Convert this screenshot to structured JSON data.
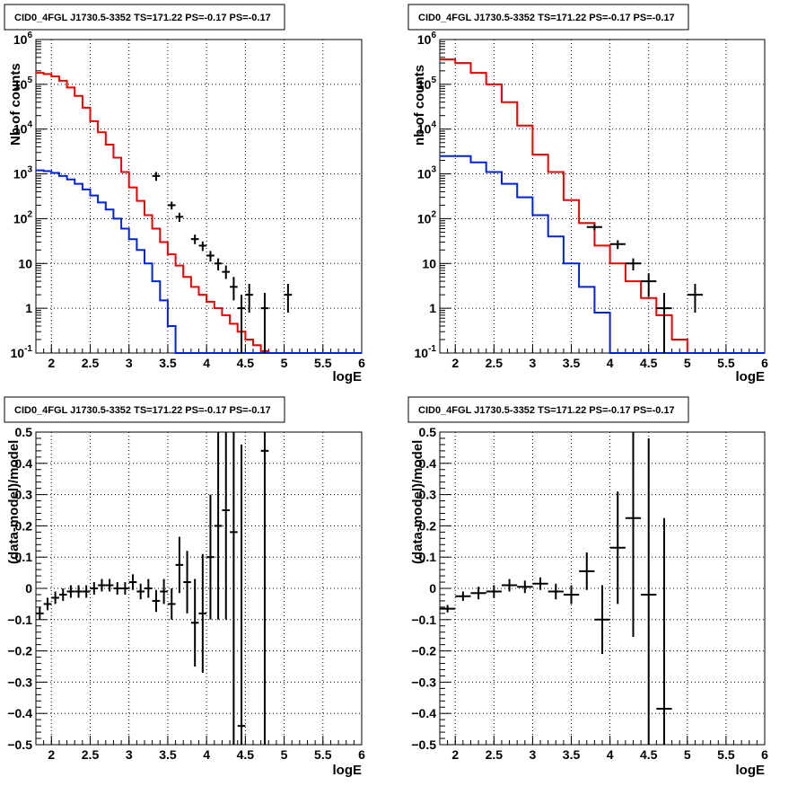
{
  "charts": [
    {
      "title": "CID0_4FGL J1730.5-3352 TS=171.22 PS=-0.17 PS=-0.17",
      "xlabel": "logE",
      "ylabel": "Nb of counts"
    },
    {
      "title": "CID0_4FGL J1730.5-3352 TS=171.22 PS=-0.17 PS=-0.17",
      "xlabel": "logE",
      "ylabel": "nb of counts"
    },
    {
      "title": "CID0_4FGL J1730.5-3352 TS=171.22 PS=-0.17 PS=-0.17",
      "xlabel": "logE",
      "ylabel": "(data-model)/model"
    },
    {
      "title": "CID0_4FGL J1730.5-3352 TS=171.22 PS=-0.17 PS=-0.17",
      "xlabel": "logE",
      "ylabel": "(data-model)/model"
    }
  ],
  "x_ticks": [
    "2",
    "2.5",
    "3",
    "3.5",
    "4",
    "4.5",
    "5",
    "5.5",
    "6"
  ],
  "log_y_ticks": [
    "10",
    "1",
    "10",
    "10",
    "10",
    "10",
    "10",
    "10"
  ],
  "resid_y_ticks": [
    "0.5",
    "0.4",
    "0.3",
    "0.2",
    "0.1",
    "0",
    "−0.1",
    "−0.2",
    "−0.3",
    "−0.4",
    "−0.5"
  ],
  "colors": {
    "total_model": "#ee0000",
    "source_model": "#0022dd",
    "data": "#000000",
    "grid": "#000000"
  },
  "chart_data": [
    {
      "type": "line",
      "title": "CID0_4FGL J1730.5-3352 TS=171.22 PS=-0.17 PS=-0.17",
      "xlabel": "logE",
      "ylabel": "Nb of counts",
      "xlim": [
        1.8,
        6.0
      ],
      "ylim": [
        0.1,
        1000000
      ],
      "yscale": "log",
      "grid": true,
      "step": 0.1,
      "series": [
        {
          "x_start": 1.8,
          "values": [
            180000,
            170000,
            150000,
            120000,
            85000,
            55000,
            30000,
            15000,
            8500,
            4500,
            2300,
            1100,
            500,
            250,
            120,
            60,
            30,
            16,
            9,
            5,
            3,
            2,
            1.4,
            1.0,
            0.7,
            0.45,
            0.3,
            0.2,
            0.15,
            0.11,
            0.1,
            0.1,
            0.1,
            0.1,
            0.1,
            0.1,
            0.1,
            0.1,
            0.1,
            0.1,
            0.1,
            0.1
          ]
        },
        {
          "x_start": 1.8,
          "values": [
            1200,
            1150,
            1050,
            900,
            750,
            600,
            450,
            330,
            230,
            160,
            100,
            60,
            35,
            20,
            10,
            4,
            1.5,
            0.4,
            0.1,
            0.1,
            0.1,
            0.1,
            0.1,
            0.1,
            0.1,
            0.1,
            0.1,
            0.1,
            0.1,
            0.1,
            0.1,
            0.1,
            0.1,
            0.1,
            0.1,
            0.1,
            0.1,
            0.1,
            0.1,
            0.1,
            0.1,
            0.1
          ]
        }
      ],
      "points": [
        {
          "x": 3.35,
          "y": 900,
          "err": [
            700,
            1100
          ]
        },
        {
          "x": 3.55,
          "y": 200,
          "err": [
            160,
            240
          ]
        },
        {
          "x": 3.65,
          "y": 110,
          "err": [
            85,
            135
          ]
        },
        {
          "x": 3.85,
          "y": 35,
          "err": [
            27,
            44
          ]
        },
        {
          "x": 3.95,
          "y": 25,
          "err": [
            19,
            31
          ]
        },
        {
          "x": 4.05,
          "y": 15,
          "err": [
            11,
            19
          ]
        },
        {
          "x": 4.15,
          "y": 10,
          "err": [
            7,
            13
          ]
        },
        {
          "x": 4.25,
          "y": 6.5,
          "err": [
            4.5,
            9
          ]
        },
        {
          "x": 4.35,
          "y": 3,
          "err": [
            1.5,
            5
          ]
        },
        {
          "x": 4.45,
          "y": 1,
          "err": [
            0.1,
            2
          ]
        },
        {
          "x": 4.55,
          "y": 2,
          "err": [
            0.8,
            3.5
          ]
        },
        {
          "x": 4.75,
          "y": 1,
          "err": [
            0.1,
            2.2
          ]
        },
        {
          "x": 5.05,
          "y": 2,
          "err": [
            0.8,
            3.5
          ]
        }
      ]
    },
    {
      "type": "line",
      "title": "CID0_4FGL J1730.5-3352 TS=171.22 PS=-0.17 PS=-0.17",
      "xlabel": "logE",
      "ylabel": "nb of counts",
      "xlim": [
        1.8,
        6.0
      ],
      "ylim": [
        0.1,
        1000000
      ],
      "yscale": "log",
      "grid": true,
      "step": 0.2,
      "series": [
        {
          "x_start": 1.8,
          "values": [
            360000,
            300000,
            180000,
            100000,
            40000,
            12000,
            2700,
            1100,
            260,
            80,
            25,
            10,
            4,
            1.7,
            0.7,
            0.2,
            0.1,
            0.1,
            0.1,
            0.1,
            0.1
          ]
        },
        {
          "x_start": 1.8,
          "values": [
            2500,
            2500,
            1800,
            1100,
            600,
            300,
            120,
            40,
            10,
            3,
            0.8,
            0.1,
            0.1,
            0.1,
            0.1,
            0.1,
            0.1,
            0.1,
            0.1,
            0.1,
            0.1
          ]
        }
      ],
      "points": [
        {
          "x": 3.8,
          "y": 65,
          "err": [
            55,
            75
          ]
        },
        {
          "x": 4.1,
          "y": 27,
          "err": [
            21,
            33
          ]
        },
        {
          "x": 4.3,
          "y": 10,
          "err": [
            7,
            13
          ]
        },
        {
          "x": 4.5,
          "y": 4,
          "err": [
            1.8,
            6
          ]
        },
        {
          "x": 4.7,
          "y": 1,
          "err": [
            0.1,
            2.2
          ]
        },
        {
          "x": 5.1,
          "y": 2,
          "err": [
            0.8,
            3.5
          ]
        }
      ]
    },
    {
      "type": "scatter",
      "title": "CID0_4FGL J1730.5-3352 TS=171.22 PS=-0.17 PS=-0.17",
      "xlabel": "logE",
      "ylabel": "(data-model)/model",
      "xlim": [
        1.8,
        6.0
      ],
      "ylim": [
        -0.5,
        0.5
      ],
      "grid": true,
      "half_width": 0.05,
      "points": [
        {
          "x": 1.85,
          "y": -0.08,
          "err": 0.02
        },
        {
          "x": 1.95,
          "y": -0.05,
          "err": 0.02
        },
        {
          "x": 2.05,
          "y": -0.03,
          "err": 0.02
        },
        {
          "x": 2.15,
          "y": -0.02,
          "err": 0.02
        },
        {
          "x": 2.25,
          "y": -0.01,
          "err": 0.02
        },
        {
          "x": 2.35,
          "y": -0.01,
          "err": 0.02
        },
        {
          "x": 2.45,
          "y": -0.01,
          "err": 0.02
        },
        {
          "x": 2.55,
          "y": 0.0,
          "err": 0.02
        },
        {
          "x": 2.65,
          "y": 0.01,
          "err": 0.02
        },
        {
          "x": 2.75,
          "y": 0.01,
          "err": 0.02
        },
        {
          "x": 2.85,
          "y": 0.0,
          "err": 0.02
        },
        {
          "x": 2.95,
          "y": 0.0,
          "err": 0.02
        },
        {
          "x": 3.05,
          "y": 0.02,
          "err": 0.025
        },
        {
          "x": 3.15,
          "y": -0.01,
          "err": 0.025
        },
        {
          "x": 3.25,
          "y": 0.0,
          "err": 0.03
        },
        {
          "x": 3.35,
          "y": -0.04,
          "err": 0.035
        },
        {
          "x": 3.45,
          "y": -0.01,
          "err": 0.04
        },
        {
          "x": 3.55,
          "y": -0.05,
          "err": 0.05
        },
        {
          "x": 3.65,
          "y": 0.075,
          "err": 0.09
        },
        {
          "x": 3.75,
          "y": 0.02,
          "err": 0.1
        },
        {
          "x": 3.85,
          "y": -0.11,
          "err": 0.14
        },
        {
          "x": 3.95,
          "y": -0.08,
          "err": 0.19
        },
        {
          "x": 4.05,
          "y": 0.1,
          "err": 0.2
        },
        {
          "x": 4.15,
          "y": 0.2,
          "err": 0.3
        },
        {
          "x": 4.25,
          "y": 0.25,
          "err": 0.35
        },
        {
          "x": 4.35,
          "y": 0.18,
          "err": 0.7
        },
        {
          "x": 4.45,
          "y": -0.44,
          "err": 0.9
        },
        {
          "x": 4.75,
          "y": 0.44,
          "err": 1.0
        }
      ]
    },
    {
      "type": "scatter",
      "title": "CID0_4FGL J1730.5-3352 TS=171.22 PS=-0.17 PS=-0.17",
      "xlabel": "logE",
      "ylabel": "(data-model)/model",
      "xlim": [
        1.8,
        6.0
      ],
      "ylim": [
        -0.5,
        0.5
      ],
      "grid": true,
      "half_width": 0.1,
      "points": [
        {
          "x": 1.9,
          "y": -0.065,
          "err": 0.012
        },
        {
          "x": 2.1,
          "y": -0.025,
          "err": 0.015
        },
        {
          "x": 2.3,
          "y": -0.015,
          "err": 0.02
        },
        {
          "x": 2.5,
          "y": -0.01,
          "err": 0.02
        },
        {
          "x": 2.7,
          "y": 0.01,
          "err": 0.02
        },
        {
          "x": 2.9,
          "y": 0.005,
          "err": 0.02
        },
        {
          "x": 3.1,
          "y": 0.015,
          "err": 0.02
        },
        {
          "x": 3.3,
          "y": -0.01,
          "err": 0.025
        },
        {
          "x": 3.5,
          "y": -0.02,
          "err": 0.03
        },
        {
          "x": 3.7,
          "y": 0.055,
          "err": 0.06
        },
        {
          "x": 3.9,
          "y": -0.1,
          "err": 0.11
        },
        {
          "x": 4.1,
          "y": 0.13,
          "err": 0.18
        },
        {
          "x": 4.3,
          "y": 0.225,
          "err": 0.38
        },
        {
          "x": 4.5,
          "y": -0.02,
          "err": 0.5
        },
        {
          "x": 4.7,
          "y": -0.385,
          "err": 0.61
        }
      ]
    }
  ]
}
